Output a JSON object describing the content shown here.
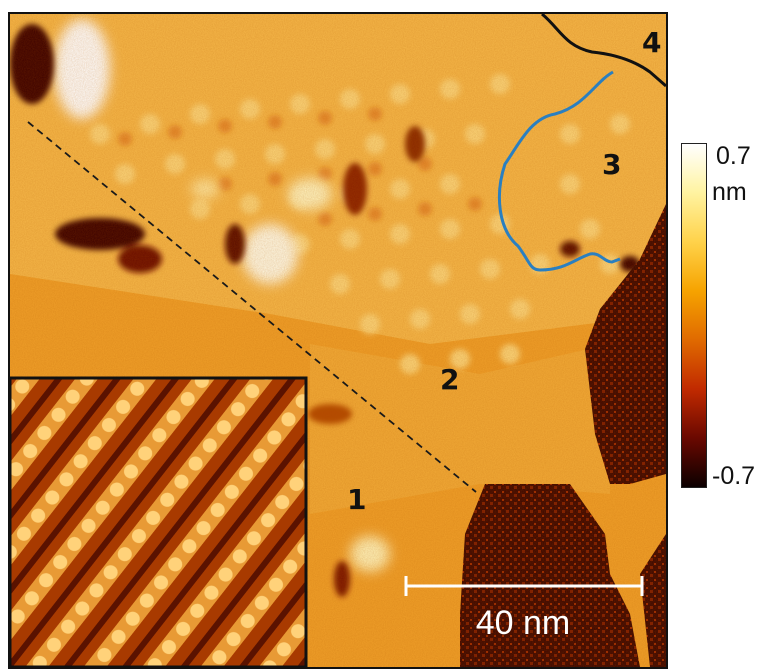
{
  "figure": {
    "region_labels": [
      "1",
      "2",
      "3",
      "4"
    ],
    "scale_bar_label": "40 nm",
    "colorbar": {
      "max_label": "0.7",
      "unit_label": "nm",
      "min_label": "-0.7",
      "colors": [
        "#ffffff",
        "#fff3a0",
        "#ffd24a",
        "#f6a300",
        "#e06a00",
        "#c12a00",
        "#6a0800",
        "#0b0000"
      ]
    },
    "colors": {
      "domain_boundary_blue": "#2a7fc0",
      "domain_boundary_black": "#111111",
      "dashed_line": "#1a1a1a",
      "scale_bar": "#ffffff"
    }
  }
}
